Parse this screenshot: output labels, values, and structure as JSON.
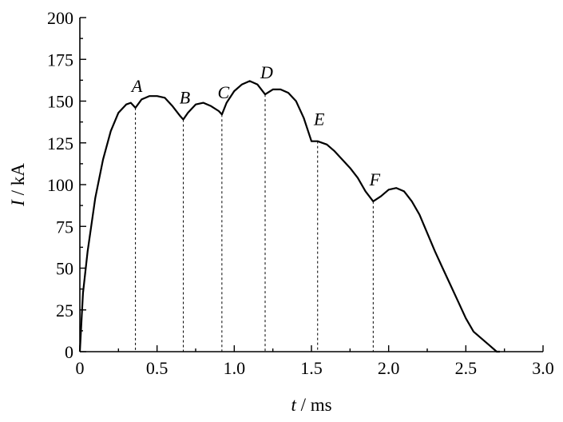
{
  "chart_data": {
    "type": "line",
    "title": "",
    "x_axis": {
      "label_var": "t",
      "label_unit": " / ms",
      "range": [
        0,
        3.0
      ],
      "ticks": [
        0,
        0.5,
        1.0,
        1.5,
        2.0,
        2.5,
        3.0
      ],
      "tick_labels": [
        "0",
        "0.5",
        "1.0",
        "1.5",
        "2.0",
        "2.5",
        "3.0"
      ]
    },
    "y_axis": {
      "label_var": "I",
      "label_unit": " / kA",
      "range": [
        0,
        200
      ],
      "ticks": [
        0,
        25,
        50,
        75,
        100,
        125,
        150,
        175,
        200
      ],
      "tick_labels": [
        "0",
        "25",
        "50",
        "75",
        "100",
        "125",
        "150",
        "175",
        "200"
      ]
    },
    "grid": false,
    "series": [
      {
        "x": [
          0,
          0.02,
          0.05,
          0.1,
          0.15,
          0.2,
          0.25,
          0.3,
          0.33,
          0.36,
          0.4,
          0.45,
          0.5,
          0.55,
          0.6,
          0.65,
          0.67,
          0.7,
          0.75,
          0.8,
          0.85,
          0.9,
          0.92,
          0.95,
          1.0,
          1.05,
          1.1,
          1.15,
          1.2,
          1.25,
          1.3,
          1.35,
          1.4,
          1.45,
          1.5,
          1.54,
          1.6,
          1.65,
          1.7,
          1.75,
          1.8,
          1.85,
          1.9,
          1.95,
          2.0,
          2.05,
          2.1,
          2.15,
          2.2,
          2.25,
          2.3,
          2.35,
          2.4,
          2.45,
          2.5,
          2.55,
          2.6,
          2.65,
          2.7,
          2.72
        ],
        "y": [
          0,
          35,
          60,
          92,
          115,
          132,
          143,
          148,
          149,
          146,
          151,
          153,
          153,
          152,
          147,
          141,
          139,
          143,
          148,
          149,
          147,
          144,
          142,
          149,
          156,
          160,
          162,
          160,
          154,
          157,
          157,
          155,
          150,
          140,
          126,
          126,
          124,
          120,
          115,
          110,
          104,
          96,
          90,
          93,
          97,
          98,
          96,
          90,
          82,
          71,
          60,
          50,
          40,
          30,
          20,
          12,
          8,
          4,
          0,
          -2
        ]
      }
    ],
    "annotations": [
      {
        "label": "A",
        "x": 0.36,
        "y": 146
      },
      {
        "label": "B",
        "x": 0.67,
        "y": 139
      },
      {
        "label": "C",
        "x": 0.92,
        "y": 142
      },
      {
        "label": "D",
        "x": 1.2,
        "y": 154
      },
      {
        "label": "E",
        "x": 1.54,
        "y": 126
      },
      {
        "label": "F",
        "x": 1.9,
        "y": 90
      }
    ]
  }
}
